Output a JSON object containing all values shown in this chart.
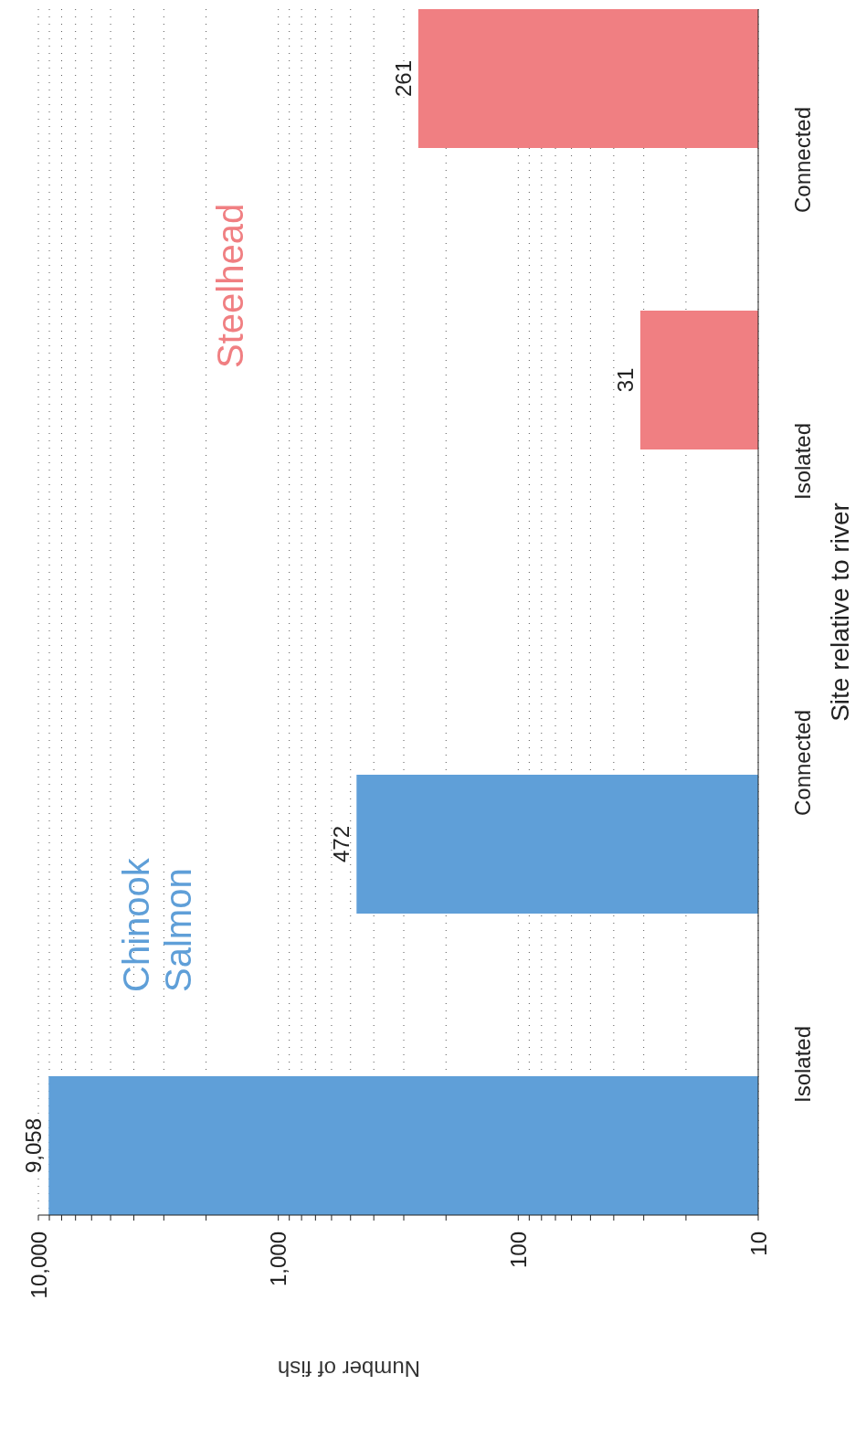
{
  "chart_data": {
    "type": "bar",
    "orientation": "horizontal",
    "xlabel": "Number of fish",
    "ylabel": "Site relative to river",
    "categories": [
      "Connected",
      "Isolated",
      "Connected",
      "Isolated"
    ],
    "series": [
      {
        "name": "Chinook Salmon",
        "color": "#5f9fd8",
        "values": [
          null,
          null,
          472,
          9058
        ],
        "value_labels": [
          null,
          null,
          "472",
          "9,058"
        ]
      },
      {
        "name": "Steelhead",
        "color": "#f07f82",
        "values": [
          261,
          31,
          null,
          null
        ],
        "value_labels": [
          "261",
          "31",
          null,
          null
        ]
      }
    ],
    "log": "x",
    "xlim": [
      10000,
      10
    ],
    "xticks": [
      {
        "value": 10,
        "label": "10"
      },
      {
        "value": 20,
        "label": null
      },
      {
        "value": 30,
        "label": null
      },
      {
        "value": 40,
        "label": null
      },
      {
        "value": 50,
        "label": null
      },
      {
        "value": 60,
        "label": null
      },
      {
        "value": 70,
        "label": null
      },
      {
        "value": 80,
        "label": null
      },
      {
        "value": 90,
        "label": null
      },
      {
        "value": 100,
        "label": "100"
      },
      {
        "value": 200,
        "label": null
      },
      {
        "value": 300,
        "label": null
      },
      {
        "value": 400,
        "label": null
      },
      {
        "value": 500,
        "label": null
      },
      {
        "value": 600,
        "label": null
      },
      {
        "value": 700,
        "label": null
      },
      {
        "value": 800,
        "label": null
      },
      {
        "value": 900,
        "label": null
      },
      {
        "value": 1000,
        "label": "1,000"
      },
      {
        "value": 2000,
        "label": null
      },
      {
        "value": 3000,
        "label": null
      },
      {
        "value": 4000,
        "label": null
      },
      {
        "value": 5000,
        "label": null
      },
      {
        "value": 6000,
        "label": null
      },
      {
        "value": 7000,
        "label": null
      },
      {
        "value": 8000,
        "label": null
      },
      {
        "value": 9000,
        "label": null
      },
      {
        "value": 10000,
        "label": "10,000"
      }
    ],
    "grid": "x"
  }
}
